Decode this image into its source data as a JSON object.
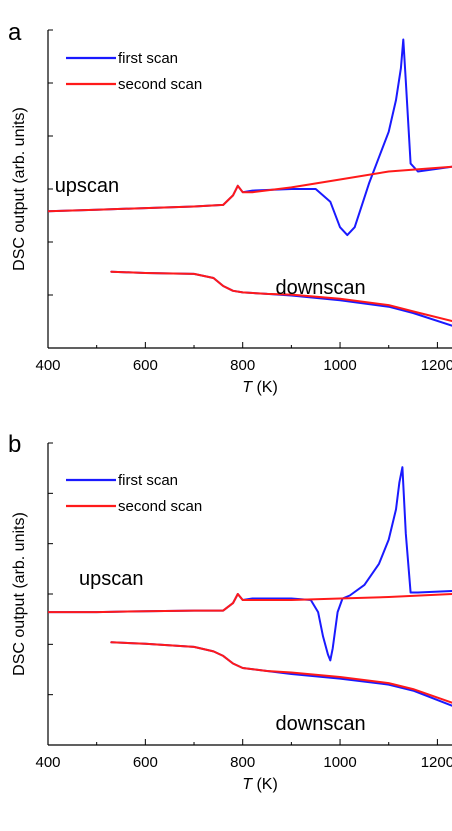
{
  "chart_data": [
    {
      "panel_label": "a",
      "type": "line",
      "xlabel_var": "T",
      "xlabel_unit": " (K)",
      "ylabel": "DSC output (arb. units)",
      "xlim": [
        400,
        1230
      ],
      "ylim": [
        0,
        100
      ],
      "xticks": [
        400,
        600,
        800,
        1000,
        1200
      ],
      "xtick_labels": [
        "400",
        "600",
        "800",
        "1000",
        "1200"
      ],
      "y_ticks_labeled": false,
      "legend_position": "top-left",
      "colors": {
        "first": "#1a1aff",
        "second": "#ff1a1a"
      },
      "annotations": [
        {
          "text": "upscan",
          "x": 480,
          "y": 49
        },
        {
          "text": "downscan",
          "x": 960,
          "y": 17
        }
      ],
      "series": [
        {
          "name": "first scan",
          "x": [
            400,
            500,
            600,
            700,
            760,
            780,
            790,
            800,
            820,
            900,
            950,
            980,
            1000,
            1015,
            1030,
            1045,
            1060,
            1080,
            1100,
            1115,
            1125,
            1130,
            1135,
            1145,
            1160,
            1230
          ],
          "y": [
            43,
            43.5,
            44,
            44.5,
            45,
            48,
            51,
            49,
            49.5,
            50,
            50,
            46,
            38,
            35.5,
            38,
            45,
            52,
            60,
            68,
            78,
            88,
            97,
            84,
            58,
            55.5,
            57
          ]
        },
        {
          "name": "second scan",
          "x": [
            400,
            500,
            600,
            700,
            760,
            780,
            790,
            800,
            820,
            900,
            1000,
            1100,
            1230
          ],
          "y": [
            43,
            43.5,
            44,
            44.5,
            45,
            48,
            51,
            49,
            49,
            50.5,
            53,
            55.5,
            57
          ]
        },
        {
          "name": "first scan",
          "x": [
            530,
            600,
            700,
            740,
            760,
            780,
            800,
            850,
            900,
            1000,
            1100,
            1150,
            1230
          ],
          "y": [
            24,
            23.6,
            23.3,
            22,
            19.5,
            18,
            17.5,
            17,
            16.5,
            15,
            13,
            11,
            7
          ]
        },
        {
          "name": "second scan",
          "x": [
            530,
            600,
            700,
            740,
            760,
            780,
            800,
            850,
            900,
            1000,
            1100,
            1150,
            1230
          ],
          "y": [
            24,
            23.6,
            23.3,
            22,
            19.5,
            18,
            17.5,
            17,
            16.8,
            15.5,
            13.5,
            11.5,
            8.5
          ]
        }
      ]
    },
    {
      "panel_label": "b",
      "type": "line",
      "xlabel_var": "T",
      "xlabel_unit": " (K)",
      "ylabel": "DSC output (arb. units)",
      "xlim": [
        400,
        1230
      ],
      "ylim": [
        0,
        100
      ],
      "xticks": [
        400,
        600,
        800,
        1000,
        1200
      ],
      "xtick_labels": [
        "400",
        "600",
        "800",
        "1000",
        "1200"
      ],
      "y_ticks_labeled": false,
      "legend_position": "top-left",
      "colors": {
        "first": "#1a1aff",
        "second": "#ff1a1a"
      },
      "annotations": [
        {
          "text": "upscan",
          "x": 530,
          "y": 53
        },
        {
          "text": "downscan",
          "x": 960,
          "y": 5
        }
      ],
      "series": [
        {
          "name": "first scan",
          "x": [
            400,
            500,
            600,
            700,
            760,
            780,
            790,
            800,
            820,
            900,
            940,
            955,
            965,
            975,
            980,
            985,
            995,
            1005,
            1020,
            1050,
            1080,
            1100,
            1115,
            1122,
            1128,
            1135,
            1145,
            1160,
            1230
          ],
          "y": [
            44,
            44,
            44.3,
            44.5,
            44.5,
            47,
            50,
            48,
            48.5,
            48.5,
            48,
            44,
            36,
            30,
            28,
            32,
            44,
            48.5,
            49.5,
            53,
            60,
            68,
            78,
            87,
            92,
            70,
            50.5,
            50.5,
            51
          ]
        },
        {
          "name": "second scan",
          "x": [
            400,
            500,
            600,
            700,
            760,
            780,
            790,
            800,
            820,
            900,
            1000,
            1100,
            1230
          ],
          "y": [
            44,
            44,
            44.3,
            44.5,
            44.5,
            47,
            50,
            48,
            48,
            48,
            48.5,
            49,
            50
          ]
        },
        {
          "name": "first scan",
          "x": [
            530,
            600,
            700,
            740,
            760,
            780,
            800,
            850,
            900,
            1000,
            1100,
            1150,
            1230
          ],
          "y": [
            34,
            33.5,
            32.5,
            31,
            29.5,
            27,
            25.5,
            24.5,
            23.5,
            22,
            20,
            18,
            13
          ]
        },
        {
          "name": "second scan",
          "x": [
            530,
            600,
            700,
            740,
            760,
            780,
            800,
            850,
            900,
            1000,
            1100,
            1150,
            1230
          ],
          "y": [
            34,
            33.5,
            32.5,
            31,
            29.5,
            27,
            25.5,
            24.5,
            24,
            22.5,
            20.5,
            18.5,
            14
          ]
        }
      ]
    }
  ]
}
